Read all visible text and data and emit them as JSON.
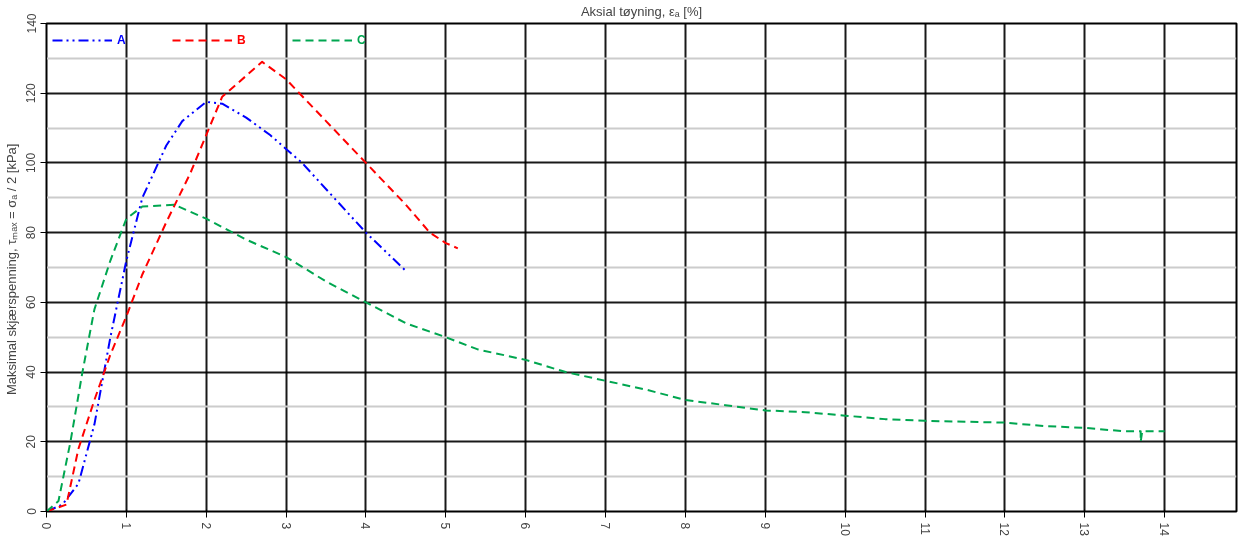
{
  "chart_data": {
    "type": "line",
    "xlabel": "Aksial tøyning, εₐ [%]",
    "ylabel": "Maksimal skjærspenning, τₘₐₓ = σₐ / 2  [kPa]",
    "xlim": [
      0,
      14.9
    ],
    "xticks": [
      0,
      1,
      2,
      3,
      4,
      5,
      6,
      7,
      8,
      9,
      10,
      11,
      12,
      13,
      14
    ],
    "ylim": [
      0,
      140
    ],
    "yticks": [
      0,
      20,
      40,
      60,
      80,
      100,
      120,
      140
    ],
    "grid": true,
    "legend": "top left",
    "marker": "none",
    "series": [
      {
        "name": "A",
        "color": "#0000ff",
        "line_style": "dashdot",
        "x": [
          0,
          0.2,
          0.4,
          0.6,
          0.8,
          1.0,
          1.2,
          1.5,
          1.7,
          2.0,
          2.2,
          2.5,
          2.8,
          3.2,
          3.6,
          4.0,
          4.5
        ],
        "values": [
          0,
          2,
          8,
          25,
          50,
          72,
          90,
          105,
          112,
          117.5,
          117,
          113,
          108,
          100,
          90,
          80,
          69
        ]
      },
      {
        "name": "B",
        "color": "#ff0000",
        "line_style": "dashed",
        "x": [
          0,
          0.25,
          0.4,
          0.6,
          0.8,
          1.0,
          1.2,
          1.5,
          1.8,
          2.0,
          2.2,
          2.7,
          3.0,
          3.5,
          4.0,
          4.5,
          4.8,
          5.0,
          5.15
        ],
        "values": [
          0,
          2,
          18,
          32,
          45,
          56,
          68,
          83,
          97,
          108,
          119,
          129,
          124,
          112,
          100,
          88,
          80,
          77,
          75.5
        ]
      },
      {
        "name": "C",
        "color": "#00a650",
        "line_style": "dashed",
        "x": [
          0,
          0.15,
          0.3,
          0.45,
          0.6,
          0.8,
          1.0,
          1.2,
          1.6,
          2.0,
          2.5,
          3.0,
          3.5,
          4.0,
          4.5,
          5.0,
          5.4,
          6.0,
          6.5,
          7.0,
          7.5,
          8.0,
          8.5,
          9.0,
          9.5,
          10.0,
          10.5,
          11.0,
          12.0,
          12.5,
          13.0,
          13.5,
          13.7,
          13.7,
          13.72,
          14.0
        ],
        "values": [
          0,
          3,
          20,
          40,
          58,
          72,
          84,
          87.5,
          88,
          84,
          78,
          73,
          66,
          60,
          54,
          50,
          46.5,
          43.5,
          40,
          37.5,
          35,
          32,
          30.5,
          29,
          28.5,
          27.5,
          26.5,
          26,
          25.5,
          24.5,
          24,
          23,
          23,
          20,
          23,
          23
        ]
      }
    ]
  }
}
